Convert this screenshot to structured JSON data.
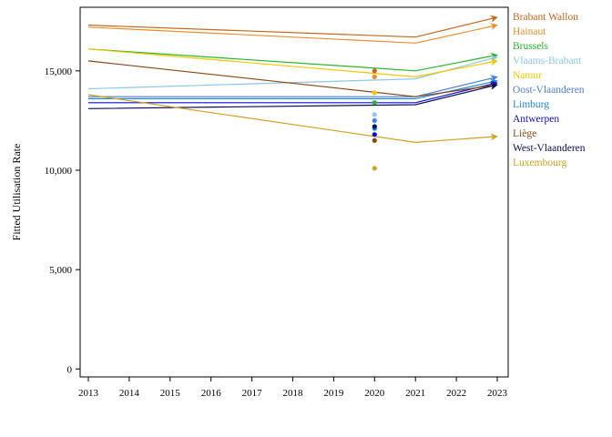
{
  "chart_data": {
    "type": "line",
    "xlabel": "",
    "ylabel": "Fitted Utilisation Rate",
    "xlim": [
      2013,
      2023
    ],
    "ylim": [
      -400,
      18200
    ],
    "x_ticks": [
      2013,
      2014,
      2015,
      2016,
      2017,
      2018,
      2019,
      2020,
      2021,
      2022,
      2023
    ],
    "x_tick_labels": [
      "2013",
      "2014",
      "2015",
      "2016",
      "2017",
      "2018",
      "2019",
      "2020",
      "2021",
      "2022",
      "2023"
    ],
    "y_ticks": [
      0,
      5000,
      10000,
      15000
    ],
    "y_tick_labels": [
      "0",
      "5,000",
      "10,000",
      "15,000"
    ],
    "grid": false,
    "legend_position": "right",
    "series": [
      {
        "name": "Brabant Wallon",
        "color": "#c8661e",
        "x": [
          2013,
          2021,
          2023
        ],
        "values": [
          17300,
          16700,
          17700
        ],
        "point_2020": 15000
      },
      {
        "name": "Hainaut",
        "color": "#f08c30",
        "x": [
          2013,
          2021,
          2023
        ],
        "values": [
          17200,
          16400,
          17300
        ],
        "point_2020": 14700
      },
      {
        "name": "Brussels",
        "color": "#2ab32a",
        "x": [
          2013,
          2021,
          2023
        ],
        "values": [
          16100,
          15000,
          15800
        ],
        "point_2020": 13400
      },
      {
        "name": "Vlaams-Brabant",
        "color": "#8ec8ea",
        "x": [
          2013,
          2021,
          2023
        ],
        "values": [
          14100,
          14600,
          15700
        ],
        "point_2020": 12800
      },
      {
        "name": "Namur",
        "color": "#f0c800",
        "x": [
          2013,
          2021,
          2023
        ],
        "values": [
          16100,
          14700,
          15500
        ],
        "point_2020": 13900
      },
      {
        "name": "Oost-Vlaanderen",
        "color": "#4a7fe0",
        "x": [
          2013,
          2021,
          2023
        ],
        "values": [
          13700,
          13700,
          14700
        ],
        "point_2020": 12500
      },
      {
        "name": "Limburg",
        "color": "#1c8ad8",
        "x": [
          2013,
          2021,
          2023
        ],
        "values": [
          13600,
          13600,
          14500
        ],
        "point_2020": 12100
      },
      {
        "name": "Antwerpen",
        "color": "#1010d0",
        "x": [
          2013,
          2021,
          2023
        ],
        "values": [
          13400,
          13400,
          14400
        ],
        "point_2020": 11800
      },
      {
        "name": "Liège",
        "color": "#8b4513",
        "x": [
          2013,
          2021,
          2023
        ],
        "values": [
          15500,
          13700,
          14300
        ],
        "point_2020": 11500
      },
      {
        "name": "West-Vlaanderen",
        "color": "#0c0c5c",
        "x": [
          2013,
          2021,
          2023
        ],
        "values": [
          13100,
          13300,
          14300
        ],
        "point_2020": 12200
      },
      {
        "name": "Luxembourg",
        "color": "#d4a020",
        "x": [
          2013,
          2021,
          2023
        ],
        "values": [
          13800,
          11400,
          11700
        ],
        "point_2020": 10100
      }
    ]
  }
}
